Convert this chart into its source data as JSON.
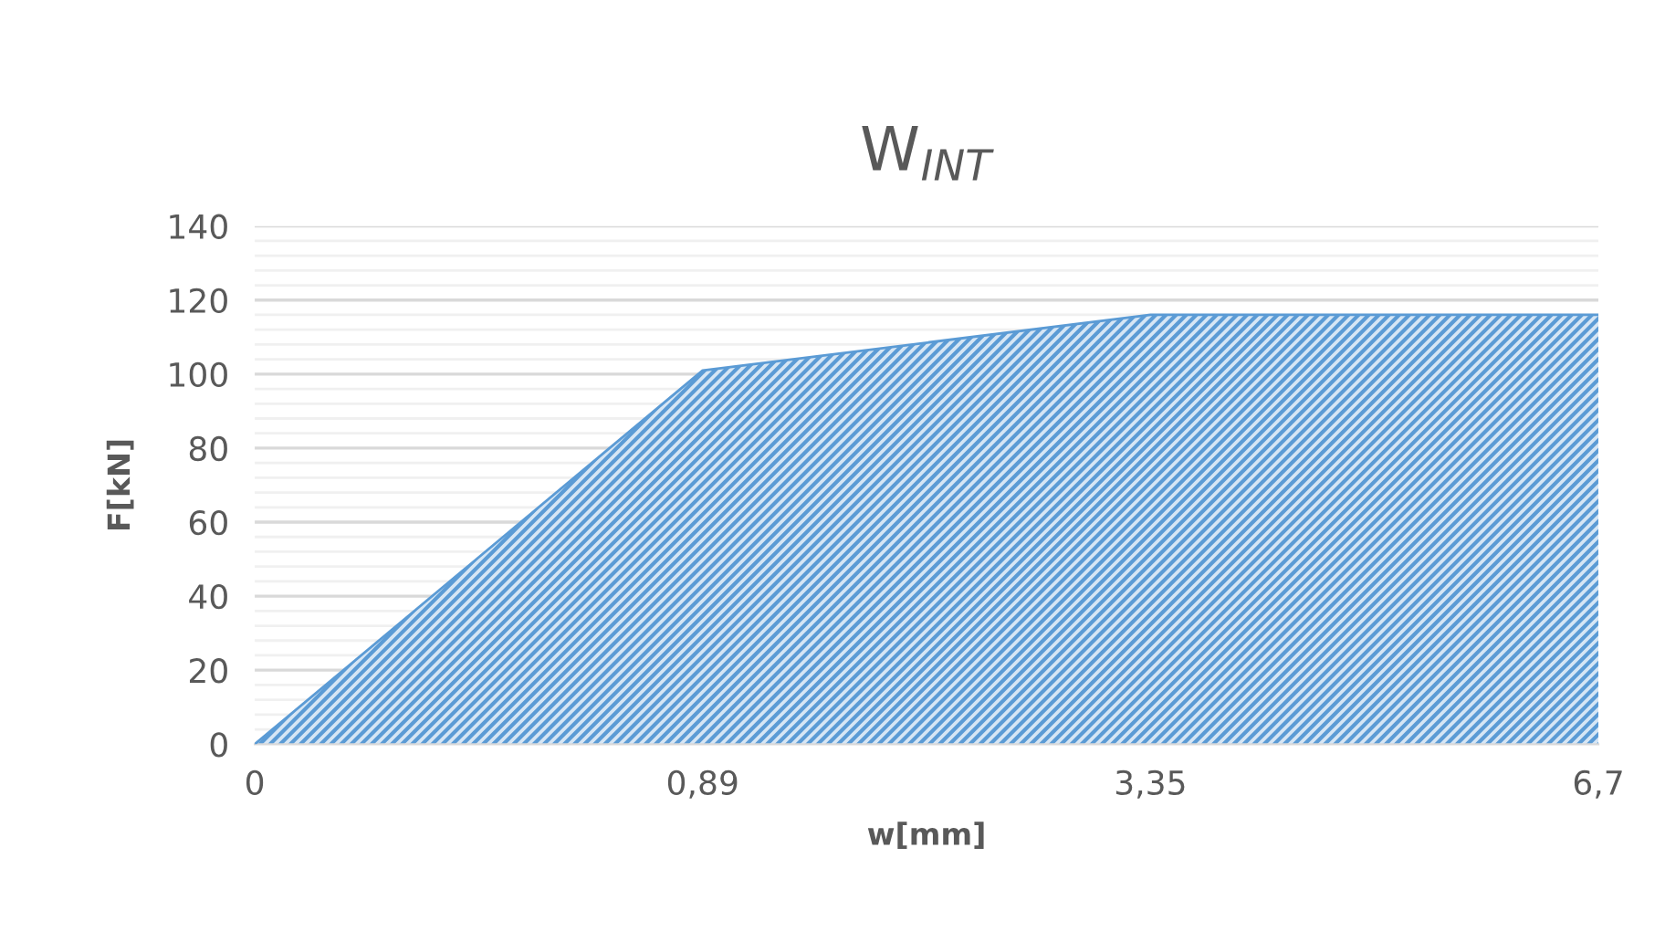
{
  "chart_data": {
    "type": "area",
    "title": "W$_{INT}$",
    "xlabel": "w[mm]",
    "ylabel": "F[kN]",
    "categories": [
      "0",
      "0,89",
      "3,35",
      "6,7"
    ],
    "series": [
      {
        "color": "#5b9bd5",
        "values": [
          0,
          101,
          116,
          116
        ]
      }
    ],
    "ylim": [
      0,
      140
    ],
    "yticks": [
      0,
      20,
      40,
      60,
      80,
      100,
      120,
      140
    ],
    "grid": "y"
  }
}
